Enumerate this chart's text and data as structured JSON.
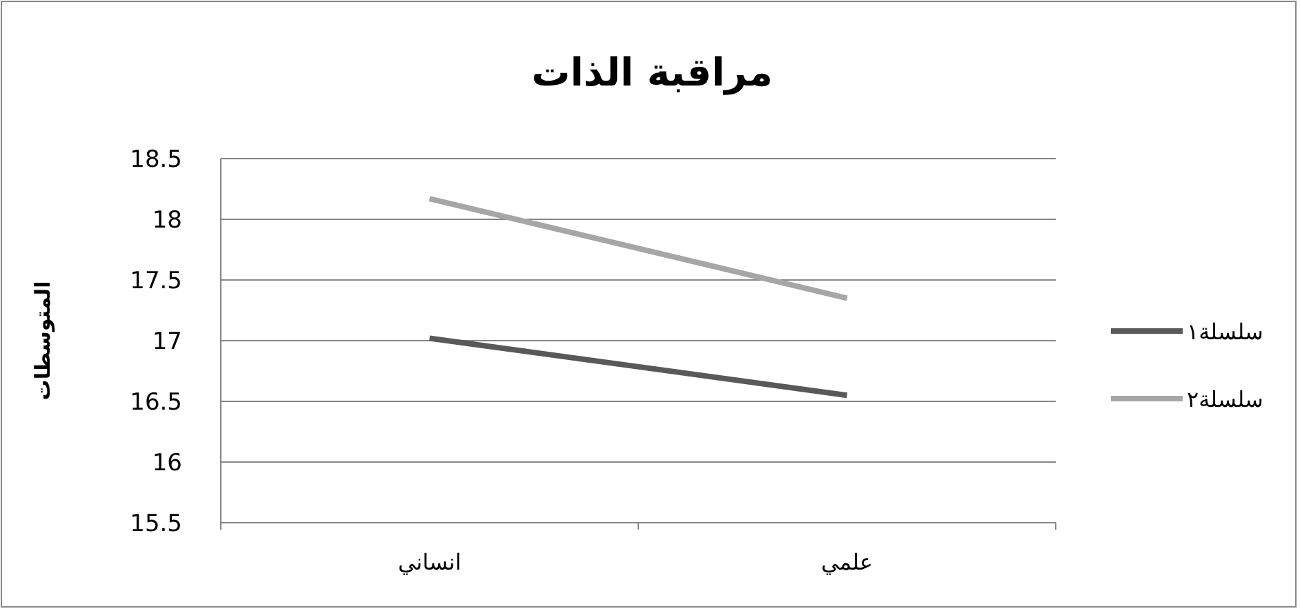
{
  "chart_data": {
    "type": "line",
    "title": "مراقبة الذات",
    "ylabel": "المتوسطات",
    "categories": [
      "انساني",
      "علمي"
    ],
    "series": [
      {
        "name": "سلسلة١",
        "color": "#595959",
        "values": [
          17.02,
          16.55
        ]
      },
      {
        "name": "سلسلة٢",
        "color": "#a6a6a6",
        "values": [
          18.17,
          17.35
        ]
      }
    ],
    "ylim": [
      15.5,
      18.5
    ],
    "yticks": [
      15.5,
      16,
      16.5,
      17,
      17.5,
      18,
      18.5
    ],
    "grid": "y",
    "legend": "right",
    "line_style": "solid"
  }
}
